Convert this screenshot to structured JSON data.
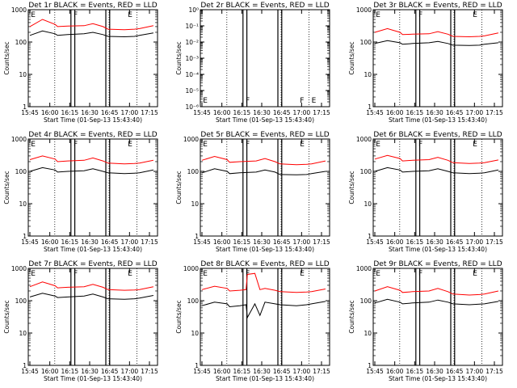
{
  "figure": {
    "x_tick_labels": [
      "15:45",
      "16:00",
      "16:15",
      "16:30",
      "16:45",
      "17:00",
      "17:15"
    ],
    "x_axis_label": "Start Time (01-Sep-13 15:43:40)",
    "y_axis_label": "Counts/sec"
  },
  "chart_data": [
    {
      "type": "line",
      "title": "Det 1r BLACK = Events, RED = LLD",
      "xlabel": "Start Time (01-Sep-13 15:43:40)",
      "ylabel": "Counts/sec",
      "yscale": "log",
      "ylim": [
        1,
        1000
      ],
      "y_tick_labels": [
        "1",
        "10",
        "100",
        "1000"
      ],
      "x_tick_labels": [
        "15:45",
        "16:00",
        "16:15",
        "16:30",
        "16:45",
        "17:00",
        "17:15"
      ],
      "flags": [
        "E",
        "F",
        "E"
      ],
      "series": [
        {
          "color": "#000000",
          "x": [
            0,
            10,
            20,
            22,
            30,
            43,
            50,
            58,
            62,
            75,
            83,
            87,
            98
          ],
          "y": [
            160,
            220,
            180,
            160,
            170,
            180,
            200,
            170,
            150,
            145,
            150,
            160,
            190
          ]
        },
        {
          "color": "#ff0000",
          "x": [
            0,
            10,
            20,
            22,
            30,
            43,
            50,
            58,
            62,
            75,
            83,
            87,
            98
          ],
          "y": [
            300,
            500,
            350,
            300,
            310,
            320,
            370,
            300,
            250,
            240,
            250,
            260,
            320
          ]
        }
      ]
    },
    {
      "type": "line",
      "title": "Det 2r BLACK = Events, RED = LLD",
      "xlabel": "Start Time (01-Sep-13 15:43:40)",
      "ylabel": "Counts/sec",
      "yscale": "log",
      "ylim": [
        1e-06,
        1
      ],
      "y_tick_labels": [
        "10⁻⁶",
        "10⁻⁵",
        "10⁻⁴",
        "10⁻³",
        "10⁻²",
        "10⁻¹",
        "10⁰"
      ],
      "x_tick_labels": [
        "15:45",
        "16:00",
        "16:15",
        "16:30",
        "16:45",
        "17:00",
        "17:15"
      ],
      "flags": [
        "E",
        "F",
        "F",
        "E"
      ],
      "series": []
    },
    {
      "type": "line",
      "title": "Det 3r BLACK = Events, RED = LLD",
      "xlabel": "Start Time (01-Sep-13 15:43:40)",
      "ylabel": "Counts/sec",
      "yscale": "log",
      "ylim": [
        1,
        1000
      ],
      "y_tick_labels": [
        "1",
        "10",
        "100",
        "1000"
      ],
      "x_tick_labels": [
        "15:45",
        "16:00",
        "16:15",
        "16:30",
        "16:45",
        "17:00",
        "17:15"
      ],
      "flags": [
        "E",
        "F",
        "E"
      ],
      "series": [
        {
          "color": "#000000",
          "x": [
            0,
            10,
            20,
            22,
            30,
            43,
            50,
            58,
            62,
            75,
            83,
            87,
            98
          ],
          "y": [
            90,
            110,
            95,
            85,
            90,
            95,
            105,
            90,
            80,
            78,
            80,
            85,
            95
          ]
        },
        {
          "color": "#ff0000",
          "x": [
            0,
            10,
            20,
            22,
            30,
            43,
            50,
            58,
            62,
            75,
            83,
            87,
            98
          ],
          "y": [
            200,
            260,
            200,
            170,
            175,
            180,
            210,
            175,
            150,
            145,
            150,
            155,
            190
          ]
        }
      ]
    },
    {
      "type": "line",
      "title": "Det 4r BLACK = Events, RED = LLD",
      "xlabel": "Start Time (01-Sep-13 15:43:40)",
      "ylabel": "Counts/sec",
      "yscale": "log",
      "ylim": [
        1,
        1000
      ],
      "y_tick_labels": [
        "1",
        "10",
        "100",
        "1000"
      ],
      "x_tick_labels": [
        "15:45",
        "16:00",
        "16:15",
        "16:30",
        "16:45",
        "17:00",
        "17:15"
      ],
      "flags": [
        "E",
        "F",
        "E"
      ],
      "series": [
        {
          "color": "#000000",
          "x": [
            0,
            10,
            20,
            22,
            30,
            43,
            50,
            58,
            62,
            75,
            83,
            87,
            98
          ],
          "y": [
            100,
            130,
            110,
            95,
            100,
            105,
            120,
            100,
            90,
            85,
            88,
            90,
            110
          ]
        },
        {
          "color": "#ff0000",
          "x": [
            0,
            10,
            20,
            22,
            30,
            43,
            50,
            58,
            62,
            75,
            83,
            87,
            98
          ],
          "y": [
            230,
            300,
            240,
            200,
            210,
            220,
            260,
            210,
            180,
            170,
            175,
            180,
            220
          ]
        }
      ]
    },
    {
      "type": "line",
      "title": "Det 5r BLACK = Events, RED = LLD",
      "xlabel": "Start Time (01-Sep-13 15:43:40)",
      "ylabel": "Counts/sec",
      "yscale": "log",
      "ylim": [
        1,
        1000
      ],
      "y_tick_labels": [
        "1",
        "10",
        "100",
        "1000"
      ],
      "x_tick_labels": [
        "15:45",
        "16:00",
        "16:15",
        "16:30",
        "16:45",
        "17:00",
        "17:15"
      ],
      "flags": [
        "E",
        "F",
        "E"
      ],
      "series": [
        {
          "color": "#000000",
          "x": [
            0,
            10,
            20,
            22,
            30,
            43,
            50,
            58,
            62,
            75,
            83,
            87,
            98
          ],
          "y": [
            90,
            120,
            100,
            85,
            90,
            95,
            110,
            95,
            80,
            78,
            80,
            85,
            100
          ]
        },
        {
          "color": "#ff0000",
          "x": [
            0,
            10,
            20,
            22,
            30,
            43,
            50,
            58,
            62,
            75,
            83,
            87,
            98
          ],
          "y": [
            220,
            290,
            230,
            190,
            200,
            210,
            250,
            200,
            170,
            160,
            165,
            170,
            210
          ]
        }
      ]
    },
    {
      "type": "line",
      "title": "Det 6r BLACK = Events, RED = LLD",
      "xlabel": "Start Time (01-Sep-13 15:43:40)",
      "ylabel": "Counts/sec",
      "yscale": "log",
      "ylim": [
        1,
        1000
      ],
      "y_tick_labels": [
        "1",
        "10",
        "100",
        "1000"
      ],
      "x_tick_labels": [
        "15:45",
        "16:00",
        "16:15",
        "16:30",
        "16:45",
        "17:00",
        "17:15"
      ],
      "flags": [
        "E",
        "F",
        "E"
      ],
      "series": [
        {
          "color": "#000000",
          "x": [
            0,
            10,
            20,
            22,
            30,
            43,
            50,
            58,
            62,
            75,
            83,
            87,
            98
          ],
          "y": [
            100,
            130,
            110,
            95,
            100,
            105,
            120,
            100,
            90,
            85,
            88,
            90,
            110
          ]
        },
        {
          "color": "#ff0000",
          "x": [
            0,
            10,
            20,
            22,
            30,
            43,
            50,
            58,
            62,
            75,
            83,
            87,
            98
          ],
          "y": [
            240,
            310,
            250,
            210,
            220,
            230,
            270,
            220,
            185,
            175,
            180,
            185,
            225
          ]
        }
      ]
    },
    {
      "type": "line",
      "title": "Det 7r BLACK = Events, RED = LLD",
      "xlabel": "Start Time (01-Sep-13 15:43:40)",
      "ylabel": "Counts/sec",
      "yscale": "log",
      "ylim": [
        1,
        1000
      ],
      "y_tick_labels": [
        "1",
        "10",
        "100",
        "1000"
      ],
      "x_tick_labels": [
        "15:45",
        "16:00",
        "16:15",
        "16:30",
        "16:45",
        "17:00",
        "17:15"
      ],
      "flags": [
        "E",
        "F",
        "E"
      ],
      "series": [
        {
          "color": "#000000",
          "x": [
            0,
            10,
            20,
            22,
            30,
            43,
            50,
            58,
            62,
            75,
            83,
            87,
            98
          ],
          "y": [
            130,
            170,
            140,
            125,
            130,
            140,
            160,
            130,
            115,
            110,
            115,
            120,
            145
          ]
        },
        {
          "color": "#ff0000",
          "x": [
            0,
            10,
            20,
            22,
            30,
            43,
            50,
            58,
            62,
            75,
            83,
            87,
            98
          ],
          "y": [
            270,
            380,
            290,
            250,
            260,
            270,
            320,
            260,
            220,
            210,
            215,
            220,
            270
          ]
        }
      ]
    },
    {
      "type": "line",
      "title": "Det 8r BLACK = Events, RED = LLD",
      "xlabel": "Start Time (01-Sep-13 15:43:40)",
      "ylabel": "Counts/sec",
      "yscale": "log",
      "ylim": [
        1,
        1000
      ],
      "y_tick_labels": [
        "1",
        "10",
        "100",
        "1000"
      ],
      "x_tick_labels": [
        "15:45",
        "16:00",
        "16:15",
        "16:30",
        "16:45",
        "17:00",
        "17:15"
      ],
      "flags": [
        "E",
        "F",
        "E"
      ],
      "series": [
        {
          "color": "#000000",
          "x": [
            0,
            10,
            20,
            22,
            30,
            35,
            36,
            42,
            46,
            50,
            58,
            62,
            75,
            83,
            87,
            98
          ],
          "y": [
            70,
            90,
            80,
            65,
            70,
            75,
            30,
            80,
            35,
            90,
            80,
            75,
            70,
            75,
            80,
            95
          ]
        },
        {
          "color": "#ff0000",
          "x": [
            0,
            10,
            20,
            22,
            30,
            35,
            36,
            42,
            46,
            50,
            58,
            62,
            75,
            83,
            87,
            98
          ],
          "y": [
            220,
            280,
            240,
            200,
            210,
            220,
            650,
            700,
            220,
            240,
            210,
            190,
            180,
            185,
            190,
            230
          ]
        }
      ]
    },
    {
      "type": "line",
      "title": "Det 9r BLACK = Events, RED = LLD",
      "xlabel": "Start Time (01-Sep-13 15:43:40)",
      "ylabel": "Counts/sec",
      "yscale": "log",
      "ylim": [
        1,
        1000
      ],
      "y_tick_labels": [
        "1",
        "10",
        "100",
        "1000"
      ],
      "x_tick_labels": [
        "15:45",
        "16:00",
        "16:15",
        "16:30",
        "16:45",
        "17:00",
        "17:15"
      ],
      "flags": [
        "E",
        "F",
        "E"
      ],
      "series": [
        {
          "color": "#000000",
          "x": [
            0,
            10,
            20,
            22,
            30,
            43,
            50,
            58,
            62,
            75,
            83,
            87,
            98
          ],
          "y": [
            85,
            110,
            90,
            80,
            85,
            90,
            105,
            90,
            80,
            75,
            78,
            80,
            95
          ]
        },
        {
          "color": "#ff0000",
          "x": [
            0,
            10,
            20,
            22,
            30,
            43,
            50,
            58,
            62,
            75,
            83,
            87,
            98
          ],
          "y": [
            200,
            270,
            210,
            180,
            190,
            200,
            240,
            190,
            160,
            150,
            155,
            160,
            200
          ]
        }
      ]
    }
  ]
}
